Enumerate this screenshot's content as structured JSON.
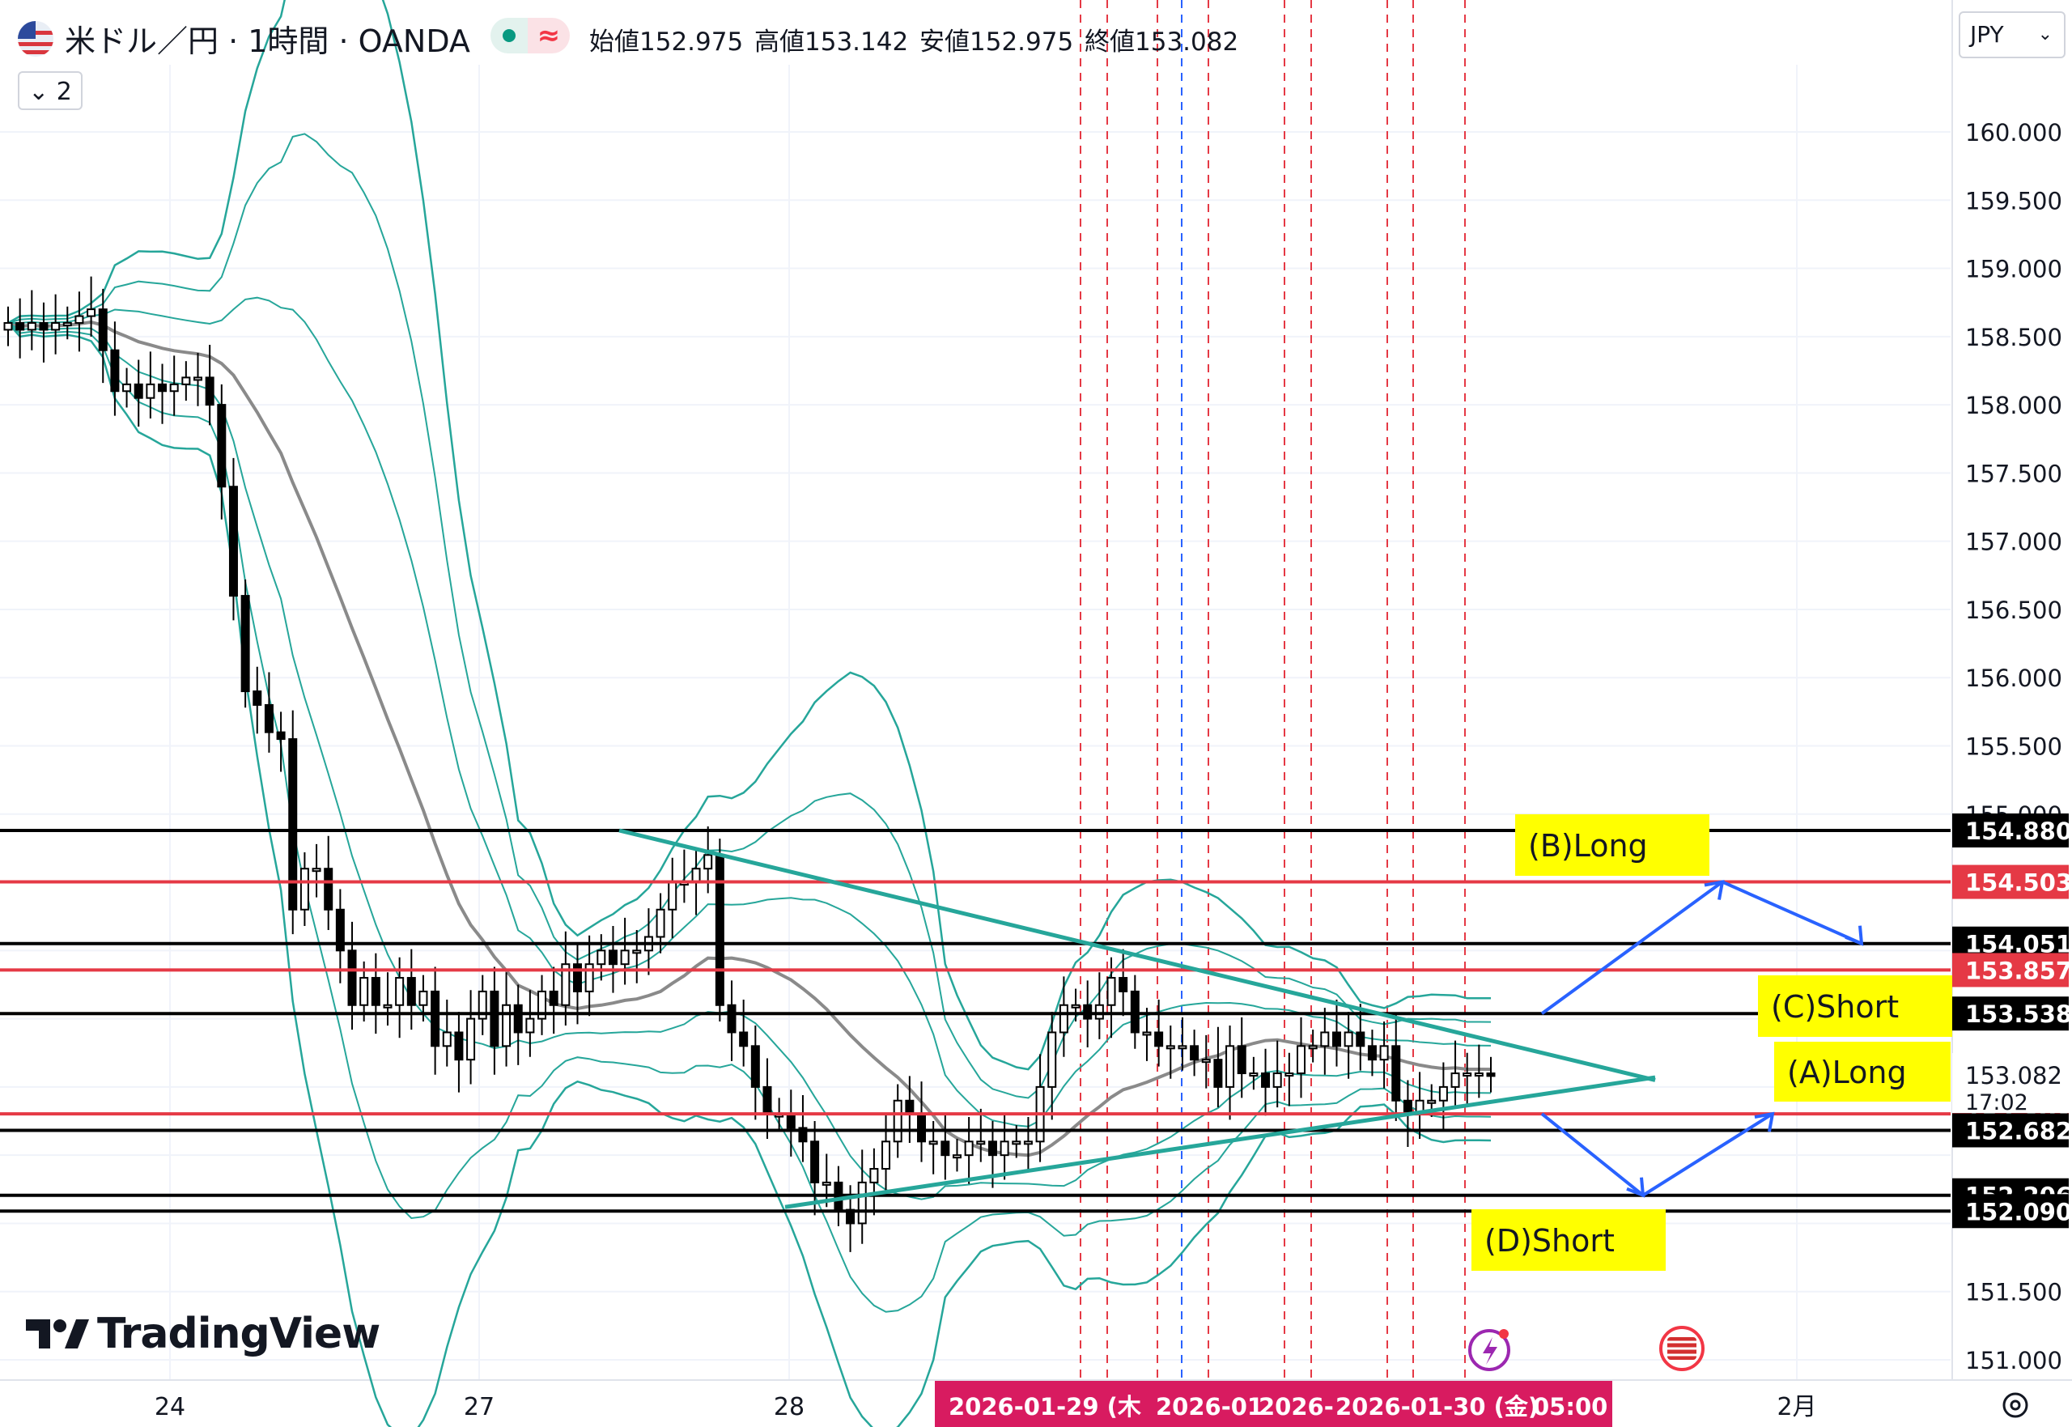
{
  "header": {
    "symbol_title": "米ドル／円 · 1時間 · OANDA",
    "open_label": "始値",
    "open_value": "152.975",
    "high_label": "高値",
    "high_value": "153.142",
    "low_label": "安値",
    "low_value": "152.975",
    "close_label": "終値",
    "close_value": "153.082",
    "indicator_count": "2",
    "currency": "JPY"
  },
  "brand": {
    "name": "TradingView"
  },
  "colors": {
    "up_candle": "#ffffff",
    "down_candle": "#000000",
    "candle_border": "#000000",
    "bollinger": "#26a69a",
    "sma": "#8a8a8a",
    "trendline": "#26a69a",
    "support_resistance_black": "#000000",
    "support_resistance_red": "#e53945",
    "vline_red": "#e53945",
    "vline_blue": "#2962ff",
    "scenario_arrow": "#2962ff",
    "annotation_bg": "#ffff00",
    "crosshair_label_bg": "#d81b60"
  },
  "chart_data": {
    "type": "candlestick",
    "title": "米ドル／円 · 1時間 · OANDA",
    "xlabel": "",
    "ylabel": "",
    "x_ticks": [
      "24",
      "27",
      "28",
      "2月"
    ],
    "ylim": [
      150.85,
      160.45
    ],
    "y_ticks": [
      151.0,
      151.5,
      152.0,
      152.5,
      153.0,
      153.5,
      154.0,
      154.5,
      155.0,
      155.5,
      156.0,
      156.5,
      157.0,
      157.5,
      158.0,
      158.5,
      159.0,
      159.5,
      160.0
    ],
    "y_tick_labels": [
      "151.000",
      "151.500",
      "",
      "",
      "",
      "",
      "",
      "",
      "155.000",
      "155.500",
      "156.000",
      "156.500",
      "157.000",
      "157.500",
      "158.000",
      "158.500",
      "159.000",
      "159.500",
      "160.000"
    ],
    "grid": true,
    "candle_closes_approx": [
      158.6,
      158.55,
      158.6,
      158.55,
      158.6,
      158.6,
      158.65,
      158.7,
      158.4,
      158.1,
      158.15,
      158.05,
      158.15,
      158.1,
      158.15,
      158.2,
      158.2,
      158.0,
      157.4,
      156.6,
      155.9,
      155.8,
      155.6,
      155.55,
      154.3,
      154.6,
      154.6,
      154.3,
      154.0,
      153.6,
      153.8,
      153.6,
      153.6,
      153.8,
      153.6,
      153.7,
      153.3,
      153.4,
      153.2,
      153.5,
      153.7,
      153.3,
      153.6,
      153.4,
      153.5,
      153.7,
      153.6,
      153.9,
      153.7,
      153.9,
      154.0,
      153.9,
      154.0,
      154.0,
      154.1,
      154.3,
      154.5,
      154.5,
      154.6,
      154.7,
      153.6,
      153.4,
      153.3,
      153.0,
      152.8,
      152.8,
      152.7,
      152.6,
      152.3,
      152.3,
      152.1,
      152.0,
      152.3,
      152.4,
      152.6,
      152.9,
      152.8,
      152.6,
      152.6,
      152.5,
      152.5,
      152.6,
      152.6,
      152.5,
      152.6,
      152.6,
      152.6,
      153.0,
      153.4,
      153.6,
      153.6,
      153.5,
      153.6,
      153.8,
      153.7,
      153.4,
      153.4,
      153.3,
      153.3,
      153.3,
      153.2,
      153.2,
      153.0,
      153.3,
      153.1,
      153.1,
      153.0,
      153.1,
      153.1,
      153.3,
      153.3,
      153.4,
      153.3,
      153.4,
      153.3,
      153.2,
      153.3,
      152.9,
      152.8,
      152.9,
      152.9,
      153.0,
      153.1,
      153.1,
      153.1,
      153.08
    ],
    "horizontal_levels": [
      {
        "value": 154.88,
        "label": "154.880",
        "color": "black"
      },
      {
        "value": 154.503,
        "label": "154.503",
        "color": "red"
      },
      {
        "value": 154.051,
        "label": "154.051",
        "color": "black"
      },
      {
        "value": 153.857,
        "label": "153.857",
        "color": "red"
      },
      {
        "value": 153.538,
        "label": "153.538",
        "color": "black"
      },
      {
        "value": 152.803,
        "label": "152.803",
        "color": "red"
      },
      {
        "value": 152.682,
        "label": "152.682",
        "color": "black"
      },
      {
        "value": 152.206,
        "label": "152.206",
        "color": "black"
      },
      {
        "value": 152.09,
        "label": "152.090",
        "color": "black"
      }
    ],
    "last_price": {
      "value": 153.082,
      "label": "153.082",
      "countdown": "17:02"
    },
    "annotations": [
      "(B)Long",
      "(C)Short",
      "(A)Long",
      "(D)Short"
    ],
    "crosshair_dates": [
      "2026-01-29 (木",
      "2026-01",
      "2026-",
      "2026-01-30 (金)",
      "05:00"
    ],
    "indicators": [
      "Bollinger Bands",
      "SMA"
    ]
  }
}
